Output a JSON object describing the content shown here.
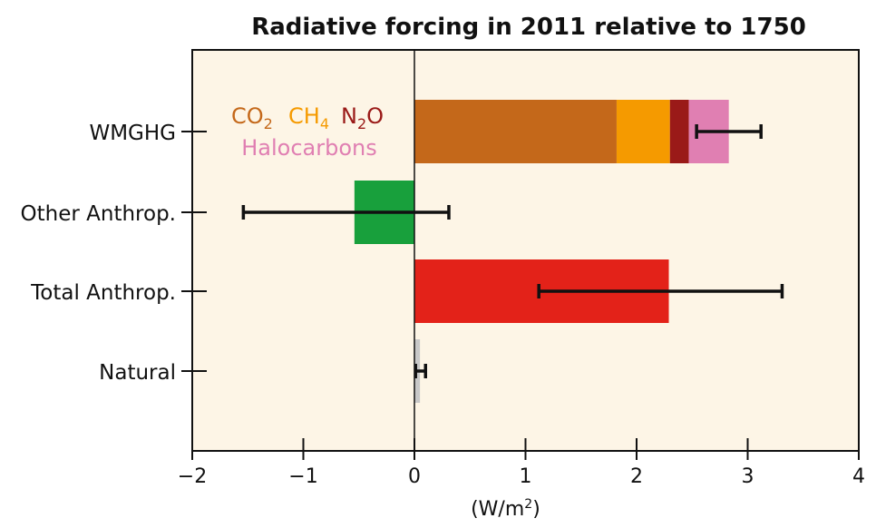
{
  "chart_data": {
    "type": "bar",
    "orientation": "horizontal",
    "stacked": true,
    "title": "Radiative forcing in 2011 relative to 1750",
    "xlabel": "(W/m²)",
    "xlabel_parts": {
      "prefix": "(W/m",
      "sup": "2",
      "suffix": ")"
    },
    "xlim": [
      -2,
      4
    ],
    "xticks": [
      -2,
      -1,
      0,
      1,
      2,
      3,
      4
    ],
    "xtick_labels": [
      "−2",
      "−1",
      "0",
      "1",
      "2",
      "3",
      "4"
    ],
    "categories": [
      "WMGHG",
      "Other Anthrop.",
      "Total Anthrop.",
      "Natural"
    ],
    "background": "#fdf5e6",
    "grid": false,
    "legend_position": "top-left (inside plot)",
    "series": [
      {
        "name": "CO2",
        "label_main": "CO",
        "label_sub": "2",
        "color": "#c4681a",
        "values": [
          1.82,
          null,
          null,
          null
        ]
      },
      {
        "name": "CH4",
        "label_main": "CH",
        "label_sub": "4",
        "color": "#f59a00",
        "values": [
          0.48,
          null,
          null,
          null
        ]
      },
      {
        "name": "N2O",
        "label_main": "N",
        "label_sub": "2",
        "label_suffix": "O",
        "color": "#9a1a18",
        "values": [
          0.17,
          null,
          null,
          null
        ]
      },
      {
        "name": "Halocarbons",
        "label_main": "Halocarbons",
        "color": "#e07fb2",
        "values": [
          0.36,
          null,
          null,
          null
        ]
      },
      {
        "name": "Other Anthrop.",
        "color": "#18a03c",
        "values": [
          null,
          -0.54,
          null,
          null
        ]
      },
      {
        "name": "Total Anthrop.",
        "color": "#e32219",
        "values": [
          null,
          null,
          2.29,
          null
        ]
      },
      {
        "name": "Natural",
        "color": "#c8c8c8",
        "values": [
          null,
          null,
          null,
          0.05
        ]
      }
    ],
    "error_bars": [
      {
        "category": "WMGHG",
        "low": 2.54,
        "high": 3.12
      },
      {
        "category": "Other Anthrop.",
        "low": -1.54,
        "high": 0.31
      },
      {
        "category": "Total Anthrop.",
        "low": 1.12,
        "high": 3.31
      },
      {
        "category": "Natural",
        "low": 0.01,
        "high": 0.1
      }
    ]
  }
}
